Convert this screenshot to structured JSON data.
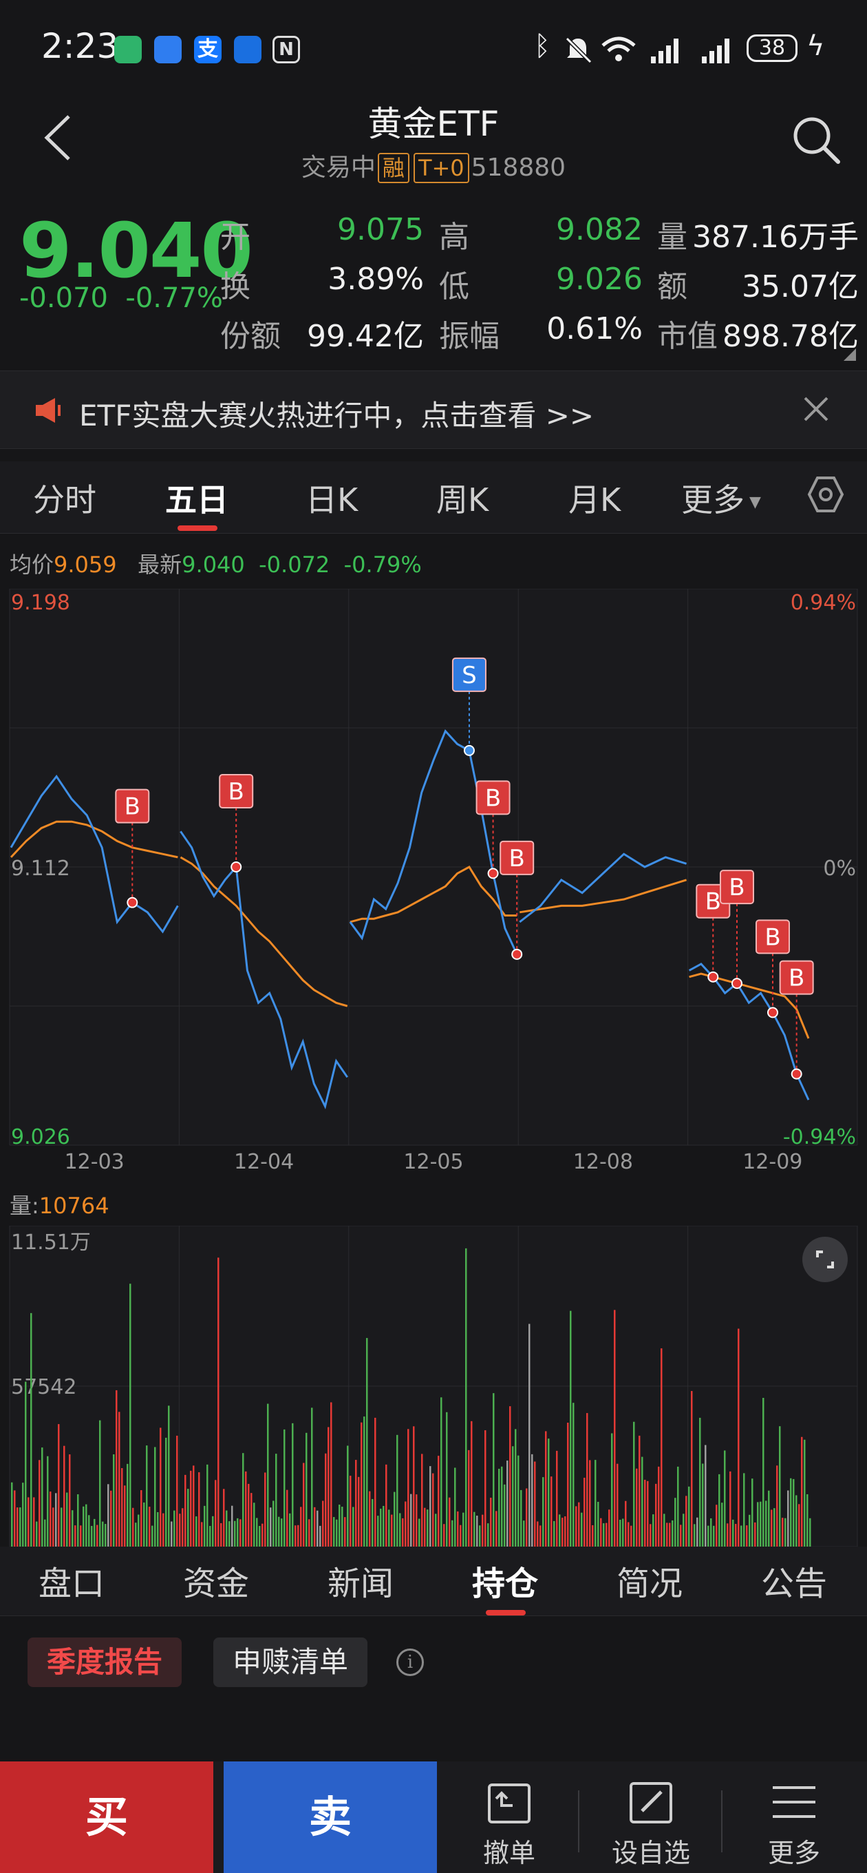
{
  "status_bar": {
    "time": "2:23",
    "battery": "38",
    "icons": [
      "app-icon-green",
      "app-icon-blue",
      "alipay-icon",
      "browser-icon",
      "nfc-icon",
      "bluetooth-icon",
      "mute-icon",
      "wifi-icon",
      "signal-icon",
      "signal-icon",
      "charging-icon"
    ]
  },
  "header": {
    "title": "黄金ETF",
    "status": "交易中",
    "tag_margin": "融",
    "tag_t0": "T+0",
    "code": "518880"
  },
  "quote": {
    "price": "9.040",
    "change": "-0.070",
    "change_pct": "-0.77%",
    "fields": [
      {
        "label": "开",
        "value": "9.075",
        "color": "green"
      },
      {
        "label": "高",
        "value": "9.082",
        "color": "green"
      },
      {
        "label": "量",
        "value": "387.16万手",
        "color": "white"
      },
      {
        "label": "换",
        "value": "3.89%",
        "color": "white"
      },
      {
        "label": "低",
        "value": "9.026",
        "color": "green"
      },
      {
        "label": "额",
        "value": "35.07亿",
        "color": "white"
      },
      {
        "label": "份额",
        "value": "99.42亿",
        "color": "white"
      },
      {
        "label": "振幅",
        "value": "0.61%",
        "color": "white"
      },
      {
        "label": "市值",
        "value": "898.78亿",
        "color": "white"
      }
    ]
  },
  "banner": {
    "text": "ETF实盘大赛火热进行中，点击查看 >>"
  },
  "chart_tabs": [
    "分时",
    "五日",
    "日K",
    "周K",
    "月K",
    "更多"
  ],
  "chart_tab_active": 1,
  "summary": {
    "avg_label": "均价",
    "avg_value": "9.059",
    "latest_label": "最新",
    "latest_value": "9.040",
    "latest_change": "-0.072",
    "latest_pct": "-0.79%"
  },
  "chart_data": {
    "type": "line",
    "x_labels": [
      "12-03",
      "12-04",
      "12-05",
      "12-08",
      "12-09"
    ],
    "y_left_ticks": [
      "9.198",
      "9.112",
      "9.026"
    ],
    "y_right_ticks": [
      "0.94%",
      "0%",
      "-0.94%"
    ],
    "ylim": [
      9.026,
      9.198
    ],
    "series": [],
    "price_line": [
      9.118,
      9.126,
      9.134,
      9.14,
      9.133,
      9.128,
      9.118,
      9.095,
      9.101,
      9.098,
      9.092,
      9.1,
      9.123,
      9.118,
      9.109,
      9.103,
      9.108,
      9.112,
      9.08,
      9.07,
      9.073,
      9.065,
      9.05,
      9.058,
      9.045,
      9.038,
      9.052,
      9.047,
      9.095,
      9.09,
      9.102,
      9.099,
      9.107,
      9.118,
      9.135,
      9.145,
      9.154,
      9.15,
      9.148,
      9.13,
      9.11,
      9.093,
      9.085,
      9.095,
      9.1,
      9.108,
      9.104,
      9.11,
      9.116,
      9.112,
      9.115,
      9.113,
      9.08,
      9.082,
      9.078,
      9.073,
      9.076,
      9.07,
      9.073,
      9.067,
      9.06,
      9.048,
      9.04
    ],
    "avg_line": [
      9.115,
      9.12,
      9.124,
      9.126,
      9.126,
      9.125,
      9.123,
      9.12,
      9.118,
      9.117,
      9.116,
      9.115,
      9.115,
      9.113,
      9.11,
      9.106,
      9.103,
      9.1,
      9.096,
      9.092,
      9.089,
      9.085,
      9.081,
      9.077,
      9.074,
      9.072,
      9.07,
      9.069,
      9.095,
      9.096,
      9.096,
      9.097,
      9.098,
      9.1,
      9.102,
      9.104,
      9.106,
      9.11,
      9.112,
      9.106,
      9.102,
      9.097,
      9.097,
      9.098,
      9.099,
      9.1,
      9.1,
      9.101,
      9.102,
      9.104,
      9.106,
      9.108,
      9.078,
      9.079,
      9.078,
      9.077,
      9.076,
      9.075,
      9.074,
      9.073,
      9.072,
      9.068,
      9.059
    ],
    "trade_marks": [
      {
        "label": "B",
        "idx": 8
      },
      {
        "label": "B",
        "idx": 17
      },
      {
        "label": "S",
        "idx": 38
      },
      {
        "label": "B",
        "idx": 40
      },
      {
        "label": "B",
        "idx": 42
      },
      {
        "label": "B",
        "idx": 54
      },
      {
        "label": "B",
        "idx": 56
      },
      {
        "label": "B",
        "idx": 59
      },
      {
        "label": "B",
        "idx": 61
      }
    ]
  },
  "volume": {
    "label": "量",
    "value": "10764",
    "ticks": [
      "11.51万",
      "57542"
    ]
  },
  "info_tabs": [
    "盘口",
    "资金",
    "新闻",
    "持仓",
    "简况",
    "公告"
  ],
  "info_tab_active": 3,
  "holdings": {
    "report_btn": "季度报告",
    "redeem_btn": "申赎清单",
    "info_icon": "i"
  },
  "actions": {
    "buy": "买",
    "sell": "卖",
    "cancel": "撤单",
    "watchlist": "设自选",
    "more": "更多"
  },
  "colors": {
    "up": "#e53935",
    "down": "#3cbf55",
    "price_line": "#3f8fe6",
    "avg_line": "#ef8a26"
  }
}
